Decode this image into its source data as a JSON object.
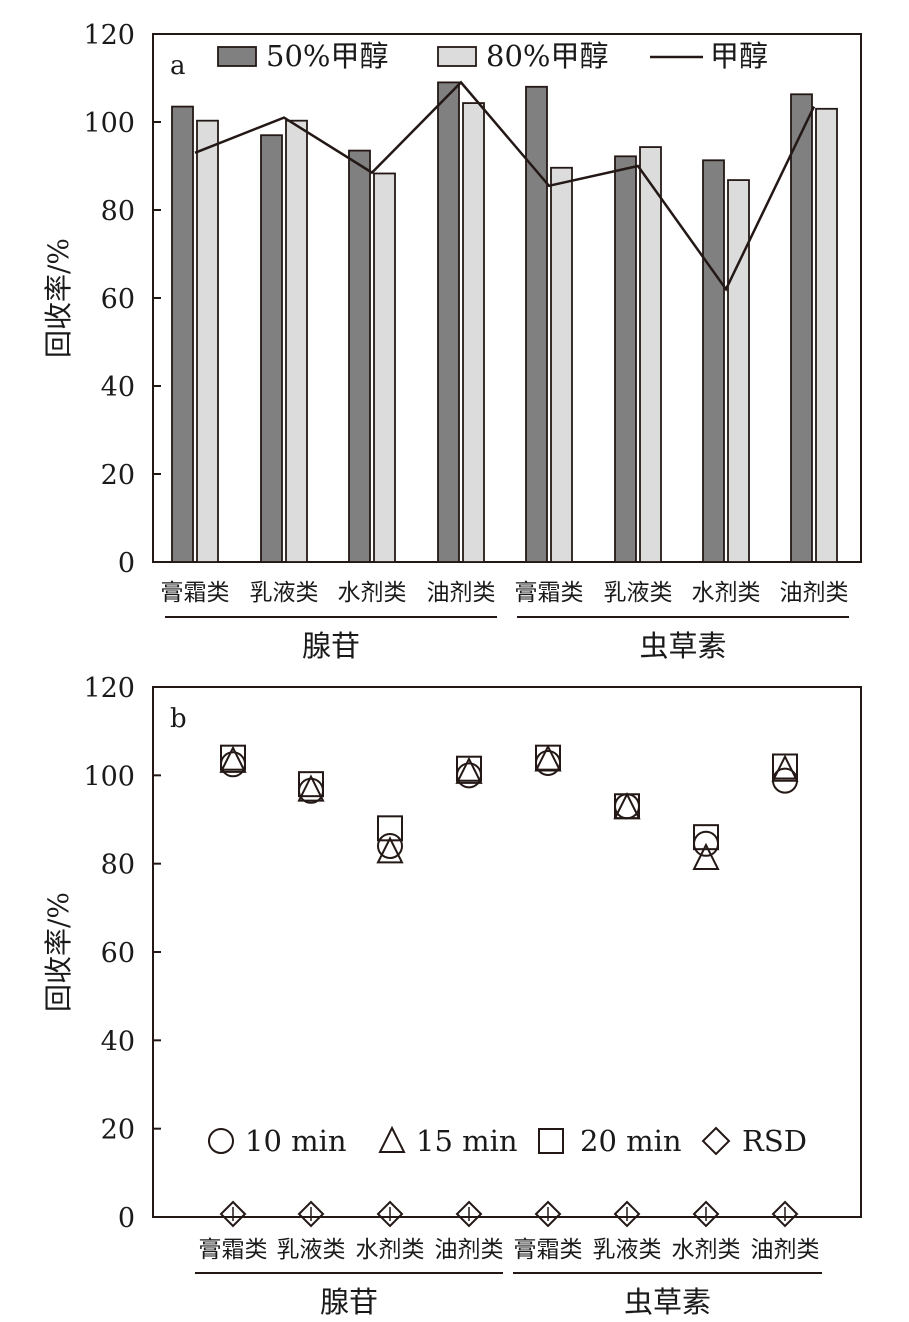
{
  "chart_data": [
    {
      "panel_label": "a",
      "type": "bar",
      "ylabel": "回收率/%",
      "ylim": [
        0,
        120
      ],
      "yticks": [
        0,
        20,
        40,
        60,
        80,
        100,
        120
      ],
      "categories": [
        "膏霜类",
        "乳液类",
        "水剂类",
        "油剂类",
        "膏霜类",
        "乳液类",
        "水剂类",
        "油剂类"
      ],
      "groups": [
        {
          "label": "腺苷",
          "categories": [
            "膏霜类",
            "乳液类",
            "水剂类",
            "油剂类"
          ]
        },
        {
          "label": "虫草素",
          "categories": [
            "膏霜类",
            "乳液类",
            "水剂类",
            "油剂类"
          ]
        }
      ],
      "series": [
        {
          "name": "50%甲醇",
          "kind": "bar",
          "color": "#808080",
          "values": [
            103.5,
            97,
            93.5,
            109,
            108,
            92.2,
            91.3,
            106.3
          ]
        },
        {
          "name": "80%甲醇",
          "kind": "bar",
          "color": "#dcdcdc",
          "values": [
            100.3,
            100.3,
            88.3,
            104.3,
            89.6,
            94.3,
            86.8,
            103
          ]
        },
        {
          "name": "甲醇",
          "kind": "line",
          "color": "#231815",
          "values": [
            93,
            101,
            88.5,
            109,
            85.5,
            90,
            62,
            103.5
          ]
        }
      ],
      "legend_position": "top"
    },
    {
      "panel_label": "b",
      "type": "scatter",
      "ylabel": "回收率/%",
      "ylim": [
        0,
        120
      ],
      "yticks": [
        0,
        20,
        40,
        60,
        80,
        100,
        120
      ],
      "categories": [
        "膏霜类",
        "乳液类",
        "水剂类",
        "油剂类",
        "膏霜类",
        "乳液类",
        "水剂类",
        "油剂类"
      ],
      "groups": [
        {
          "label": "腺苷",
          "categories": [
            "膏霜类",
            "乳液类",
            "水剂类",
            "油剂类"
          ]
        },
        {
          "label": "虫草素",
          "categories": [
            "膏霜类",
            "乳液类",
            "水剂类",
            "油剂类"
          ]
        }
      ],
      "series": [
        {
          "name": "10 min",
          "marker": "circle",
          "values": [
            102.5,
            96.5,
            84,
            100,
            102.8,
            93,
            84.5,
            98.8
          ]
        },
        {
          "name": "15 min",
          "marker": "triangle",
          "values": [
            103.5,
            97,
            83,
            101,
            103.8,
            93,
            81.5,
            101.5
          ]
        },
        {
          "name": "20 min",
          "marker": "square",
          "values": [
            104,
            98,
            88,
            101.5,
            104,
            93,
            86,
            102
          ]
        },
        {
          "name": "RSD",
          "marker": "diamond",
          "values": [
            0.8,
            0.7,
            1.5,
            0.6,
            0.6,
            0.3,
            1.2,
            1.0
          ]
        }
      ],
      "legend_position": "bottom"
    }
  ]
}
